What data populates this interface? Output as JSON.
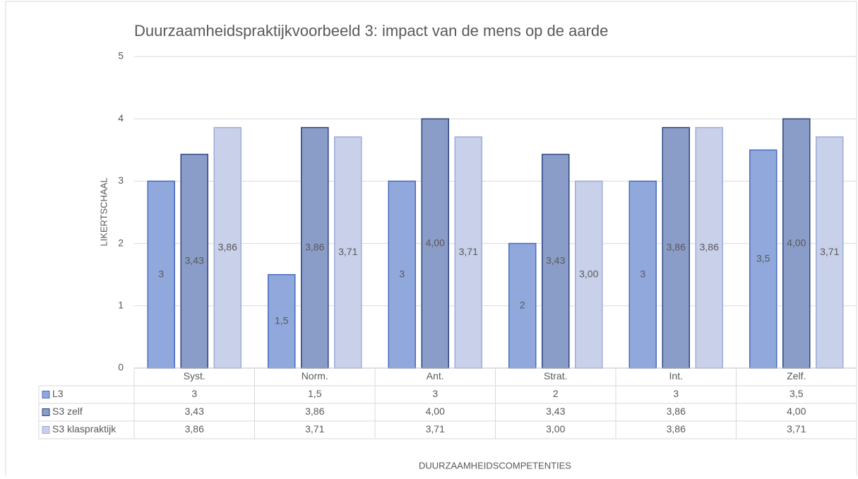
{
  "chart_data": {
    "type": "bar",
    "title": "Duurzaamheidspraktijkvoorbeeld 3: impact van de mens op de aarde",
    "x_label": "DUURZAAMHEIDSCOMPETENTIES",
    "y_label": "LIKERTSCHAAL",
    "categories": [
      "Syst.",
      "Norm.",
      "Ant.",
      "Strat.",
      "Int.",
      "Zelf."
    ],
    "series": [
      {
        "name": "L3",
        "color": "#91a8dc",
        "stroke": "#4a6bbf",
        "values": [
          3,
          1.5,
          3,
          2,
          3,
          3.5
        ],
        "value_labels": [
          "3",
          "1,5",
          "3",
          "2",
          "3",
          "3,5"
        ]
      },
      {
        "name": "S3 zelf",
        "color": "#8a9cc8",
        "stroke": "#2e4580",
        "values": [
          3.43,
          3.86,
          4.0,
          3.43,
          3.86,
          4.0
        ],
        "value_labels": [
          "3,43",
          "3,86",
          "4,00",
          "3,43",
          "3,86",
          "4,00"
        ]
      },
      {
        "name": "S3 klaspraktijk",
        "color": "#c8d0ea",
        "stroke": "#9cadd9",
        "values": [
          3.86,
          3.71,
          3.71,
          3.0,
          3.86,
          3.71
        ],
        "value_labels": [
          "3,86",
          "3,71",
          "3,71",
          "3,00",
          "3,86",
          "3,71"
        ]
      }
    ],
    "ylim": [
      0,
      5
    ],
    "yticks": [
      0,
      1,
      2,
      3,
      4,
      5
    ],
    "grid": true,
    "data_table": true
  }
}
